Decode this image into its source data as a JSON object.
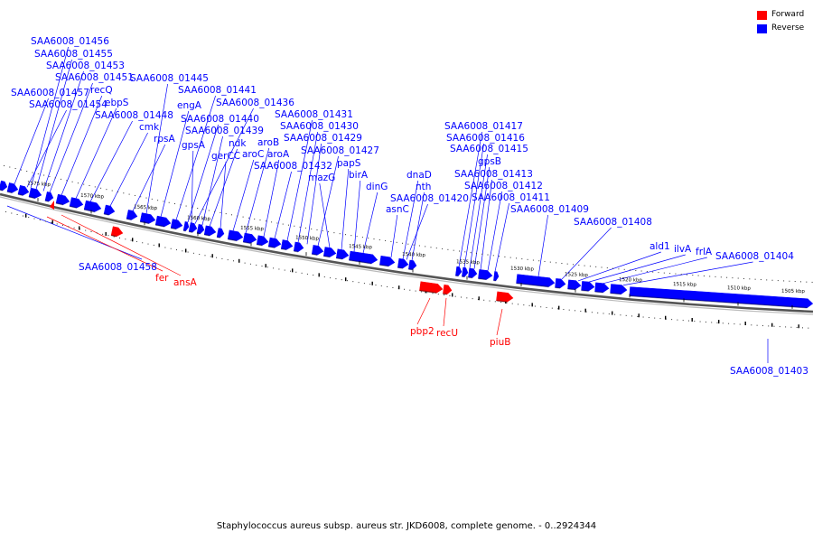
{
  "legend": [
    {
      "label": "Forward",
      "color": "#ff0000"
    },
    {
      "label": "Reverse",
      "color": "#0000ff"
    }
  ],
  "caption": "Staphylococcus aureus subsp. aureus str. JKD6008, complete genome. - 0..2924344",
  "colors": {
    "forward": "#ff0000",
    "reverse": "#0000ff",
    "backbone": "#555555"
  },
  "ticks": [
    "1575 kbp",
    "1570 kbp",
    "1565 kbp",
    "1560 kbp",
    "1555 kbp",
    "1550 kbp",
    "1545 kbp",
    "1540 kbp",
    "1535 kbp",
    "1530 kbp",
    "1525 kbp",
    "1520 kbp",
    "1515 kbp",
    "1510 kbp",
    "1505 kbp"
  ],
  "reverse_labels": [
    "SAA6008_01456",
    "SAA6008_01455",
    "SAA6008_01453",
    "SAA6008_01451",
    "SAA6008_01457",
    "recQ",
    "SAA6008_01454",
    "ebpS",
    "SAA6008_01448",
    "cmk",
    "rpsA",
    "SAA6008_01445",
    "engA",
    "SAA6008_01441",
    "SAA6008_01440",
    "SAA6008_01436",
    "SAA6008_01439",
    "gpsA",
    "ndk",
    "gerCC",
    "aroC",
    "aroB",
    "aroA",
    "SAA6008_01432",
    "SAA6008_01431",
    "SAA6008_01430",
    "SAA6008_01429",
    "SAA6008_01427",
    "mazG",
    "papS",
    "birA",
    "dinG",
    "dnaD",
    "nth",
    "SAA6008_01420",
    "asnC",
    "SAA6008_01417",
    "SAA6008_01416",
    "SAA6008_01415",
    "gpsB",
    "SAA6008_01413",
    "SAA6008_01412",
    "SAA6008_01411",
    "SAA6008_01409",
    "SAA6008_01408",
    "ald1",
    "ilvA",
    "frlA",
    "SAA6008_01404",
    "SAA6008_01403",
    "SAA6008_01458"
  ],
  "forward_labels": [
    "fer",
    "ansA",
    "pbp2",
    "recU",
    "piuB"
  ]
}
